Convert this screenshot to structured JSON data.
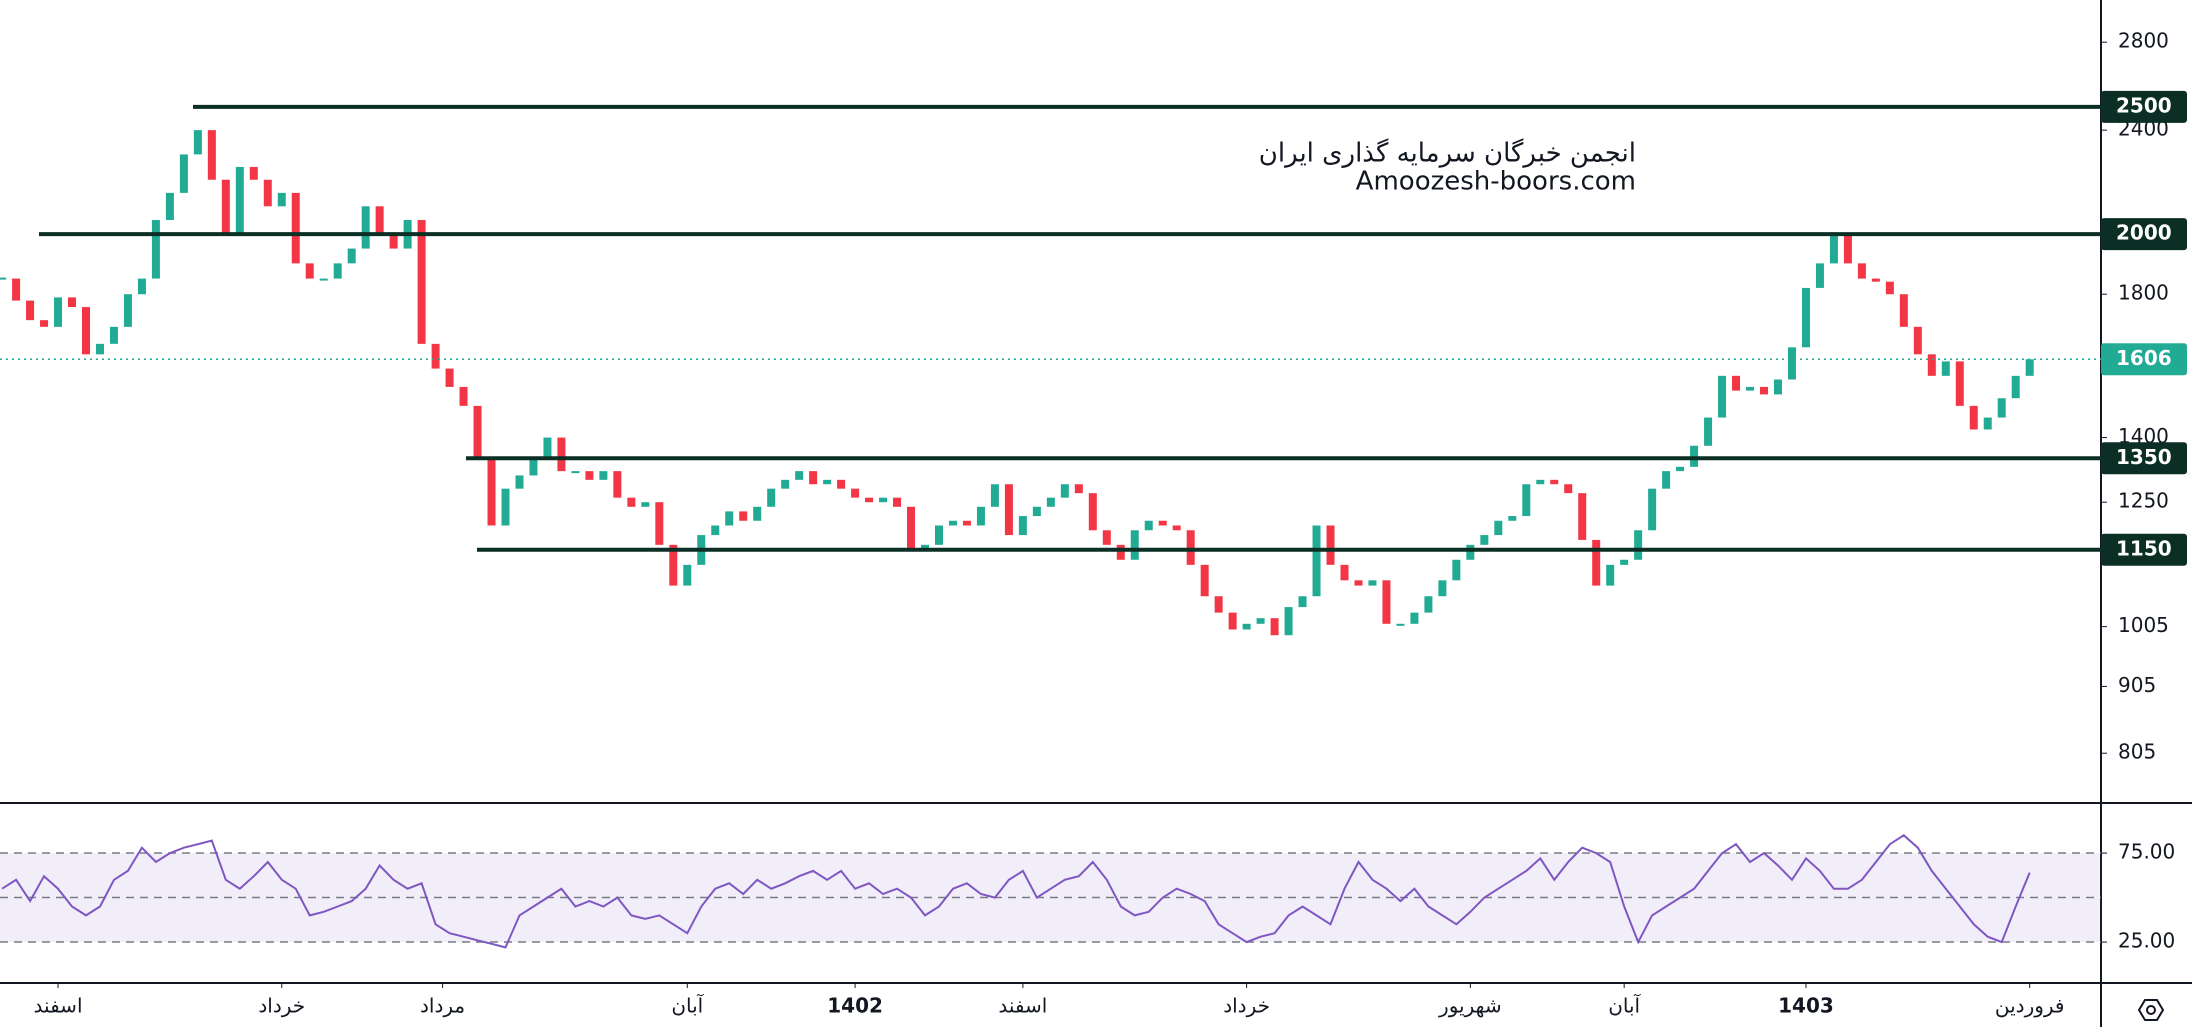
{
  "chart_data": [
    {
      "type": "candlestick",
      "values": [
        1850,
        1780,
        1720,
        1700,
        1790,
        1760,
        1620,
        1650,
        1700,
        1800,
        1850,
        2050,
        2150,
        2300,
        2400,
        2200,
        2000,
        2250,
        2200,
        2100,
        2150,
        1900,
        1850,
        1850,
        1900,
        1950,
        2100,
        2000,
        1950,
        2050,
        1650,
        1580,
        1530,
        1480,
        1350,
        1200,
        1280,
        1310,
        1350,
        1400,
        1320,
        1320,
        1300,
        1320,
        1260,
        1240,
        1250,
        1160,
        1080,
        1120,
        1180,
        1200,
        1230,
        1210,
        1240,
        1280,
        1300,
        1320,
        1290,
        1300,
        1280,
        1260,
        1250,
        1260,
        1240,
        1150,
        1160,
        1200,
        1210,
        1200,
        1240,
        1290,
        1180,
        1220,
        1240,
        1260,
        1290,
        1270,
        1190,
        1160,
        1130,
        1190,
        1210,
        1200,
        1190,
        1120,
        1060,
        1030,
        1000,
        1010,
        1020,
        990,
        1040,
        1060,
        1200,
        1120,
        1090,
        1080,
        1090,
        1010,
        1010,
        1030,
        1060,
        1090,
        1130,
        1160,
        1180,
        1210,
        1220,
        1290,
        1300,
        1290,
        1270,
        1170,
        1080,
        1120,
        1130,
        1190,
        1280,
        1320,
        1330,
        1380,
        1450,
        1560,
        1520,
        1530,
        1510,
        1550,
        1640,
        1820,
        1900,
        2000,
        1900,
        1850,
        1840,
        1800,
        1700,
        1620,
        1560,
        1600,
        1480,
        1420,
        1450,
        1500,
        1560,
        1606
      ],
      "up_color": "#22ab94",
      "down_color": "#f23645",
      "log_scale": true,
      "xlim": [
        -0.15,
        150.1
      ],
      "ylim": [
        739,
        3015
      ],
      "yticks": [
        805,
        905,
        1005,
        1250,
        1400,
        1800,
        2400,
        2800
      ],
      "levels": [
        2500,
        2000,
        1350,
        1150
      ],
      "level_color": "#0b2f24"
    },
    {
      "type": "line",
      "values": [
        55,
        60,
        48,
        62,
        55,
        45,
        40,
        45,
        60,
        65,
        78,
        70,
        75,
        78,
        80,
        82,
        60,
        55,
        62,
        70,
        60,
        55,
        40,
        42,
        45,
        48,
        55,
        68,
        60,
        55,
        58,
        35,
        30,
        28,
        26,
        24,
        22,
        40,
        45,
        50,
        55,
        45,
        48,
        45,
        50,
        40,
        38,
        40,
        35,
        30,
        45,
        55,
        58,
        52,
        60,
        55,
        58,
        62,
        65,
        60,
        65,
        55,
        58,
        52,
        55,
        50,
        40,
        45,
        55,
        58,
        52,
        50,
        60,
        65,
        50,
        55,
        60,
        62,
        70,
        60,
        45,
        40,
        42,
        50,
        55,
        52,
        48,
        35,
        30,
        25,
        28,
        30,
        40,
        45,
        40,
        35,
        55,
        70,
        60,
        55,
        48,
        55,
        45,
        40,
        35,
        42,
        50,
        55,
        60,
        65,
        72,
        60,
        70,
        78,
        75,
        70,
        45,
        25,
        40,
        45,
        50,
        55,
        65,
        75,
        80,
        70,
        75,
        68,
        60,
        72,
        65,
        55,
        55,
        60,
        70,
        80,
        85,
        78,
        65,
        55,
        45,
        35,
        28,
        25,
        45,
        64
      ],
      "color": "#7e57c2",
      "xlim": [
        -0.15,
        150.1
      ],
      "ylim": [
        2,
        102
      ],
      "yticks": [
        {
          "value": 25,
          "label": "25.00"
        },
        {
          "value": 75,
          "label": "75.00"
        }
      ],
      "band": [
        25,
        75
      ],
      "midline": 50,
      "xticks": [
        {
          "value": 4,
          "label": "اسفند"
        },
        {
          "value": 20,
          "label": "خرداد"
        },
        {
          "value": 31.5,
          "label": "مرداد"
        },
        {
          "value": 49,
          "label": "آبان"
        },
        {
          "value": 61,
          "label": "1402",
          "bold": true
        },
        {
          "value": 73,
          "label": "اسفند"
        },
        {
          "value": 89,
          "label": "خرداد"
        },
        {
          "value": 105,
          "label": "شهریور"
        },
        {
          "value": 116,
          "label": "آبان"
        },
        {
          "value": 129,
          "label": "1403",
          "bold": true
        },
        {
          "value": 145,
          "label": "فروردین"
        }
      ]
    }
  ],
  "watermark": {
    "line1": "انجمن خبرگان سرمایه گذاری ایران",
    "line2": "Amoozesh-boors.com"
  }
}
